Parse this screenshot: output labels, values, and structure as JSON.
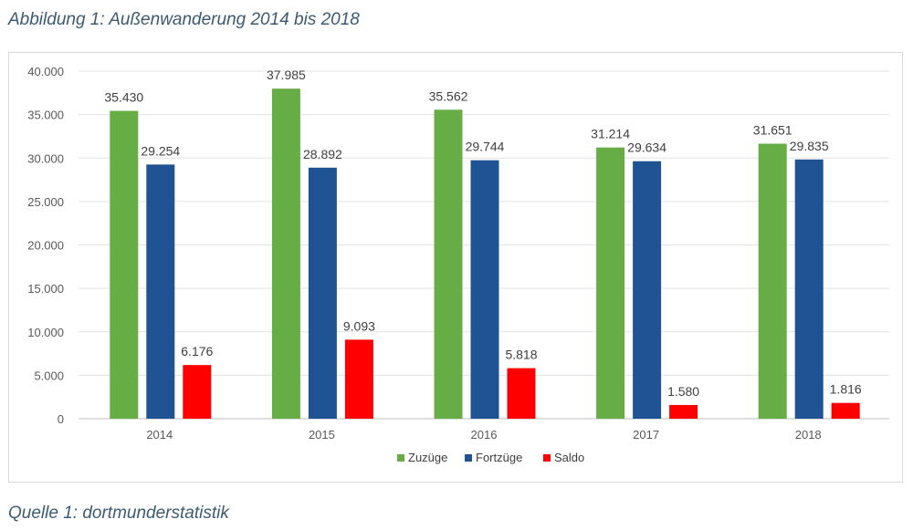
{
  "figure": {
    "title": "Abbildung 1: Außenwanderung 2014 bis 2018",
    "source": "Quelle 1: dortmunderstatistik"
  },
  "chart_data": {
    "type": "bar",
    "categories": [
      "2014",
      "2015",
      "2016",
      "2017",
      "2018"
    ],
    "series": [
      {
        "name": "Zuzüge",
        "color": "#67ad45",
        "values": [
          35430,
          37985,
          35562,
          31214,
          31651
        ],
        "labels": [
          "35.430",
          "37.985",
          "35.562",
          "31.214",
          "31.651"
        ]
      },
      {
        "name": "Fortzüge",
        "color": "#1f5394",
        "values": [
          29254,
          28892,
          29744,
          29634,
          29835
        ],
        "labels": [
          "29.254",
          "28.892",
          "29.744",
          "29.634",
          "29.835"
        ]
      },
      {
        "name": "Saldo",
        "color": "#ff0000",
        "values": [
          6176,
          9093,
          5818,
          1580,
          1816
        ],
        "labels": [
          "6.176",
          "9.093",
          "5.818",
          "1.580",
          "1.816"
        ]
      }
    ],
    "ylim": [
      0,
      40000
    ],
    "yticks": [
      "0",
      "5.000",
      "10.000",
      "15.000",
      "20.000",
      "25.000",
      "30.000",
      "35.000",
      "40.000"
    ],
    "grid": true,
    "legend": "bottom"
  }
}
